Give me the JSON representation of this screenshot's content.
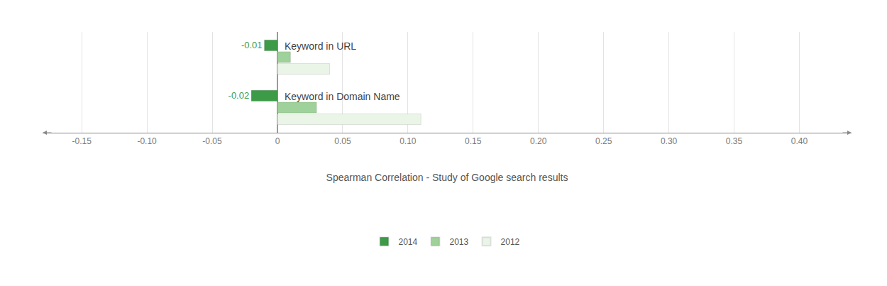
{
  "chart_data": {
    "type": "bar",
    "orientation": "horizontal",
    "x_label": "Spearman Correlation - Study of Google search results",
    "categories": [
      "Keyword in URL",
      "Keyword in Domain Name"
    ],
    "series": [
      {
        "name": "2014",
        "color": "#3d9b47",
        "values": [
          -0.01,
          -0.02
        ],
        "data_labels": true
      },
      {
        "name": "2013",
        "color": "#9fd19a",
        "values": [
          0.01,
          0.03
        ]
      },
      {
        "name": "2012",
        "color": "#eaf5e8",
        "values": [
          0.04,
          0.11
        ]
      }
    ],
    "xlim": [
      -0.18,
      0.44
    ],
    "xticks": [
      -0.15,
      {
        "value": -0.1,
        "label": "-0.10"
      },
      -0.05,
      0,
      0.05,
      {
        "value": 0.1,
        "label": "0.10"
      },
      0.15,
      {
        "value": 0.2,
        "label": "0.20"
      },
      0.25,
      {
        "value": 0.3,
        "label": "0.30"
      },
      0.35,
      {
        "value": 0.4,
        "label": "0.40"
      }
    ],
    "grid": true,
    "legend": "bottom",
    "tick_labels": "x"
  }
}
